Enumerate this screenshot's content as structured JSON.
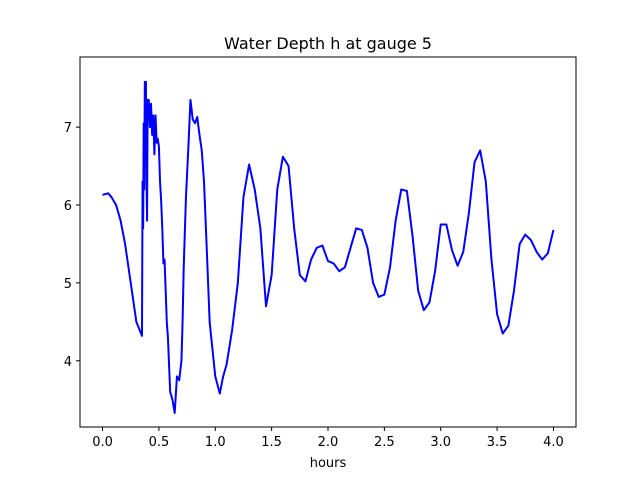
{
  "chart_data": {
    "type": "line",
    "title": "Water Depth h at gauge 5",
    "xlabel": "hours",
    "ylabel": "",
    "xlim": [
      -0.2,
      4.2
    ],
    "ylim": [
      3.15,
      7.9
    ],
    "xticks": [
      0.0,
      0.5,
      1.0,
      1.5,
      2.0,
      2.5,
      3.0,
      3.5,
      4.0
    ],
    "xtick_labels": [
      "0.0",
      "0.5",
      "1.0",
      "1.5",
      "2.0",
      "2.5",
      "3.0",
      "3.5",
      "4.0"
    ],
    "yticks": [
      4,
      5,
      6,
      7
    ],
    "ytick_labels": [
      "4",
      "5",
      "6",
      "7"
    ],
    "grid": false,
    "series": [
      {
        "color": "#0000ff",
        "x": [
          0.0,
          0.05,
          0.08,
          0.12,
          0.16,
          0.2,
          0.25,
          0.3,
          0.35,
          0.355,
          0.36,
          0.365,
          0.37,
          0.375,
          0.38,
          0.385,
          0.39,
          0.395,
          0.4,
          0.41,
          0.42,
          0.43,
          0.44,
          0.45,
          0.46,
          0.47,
          0.48,
          0.49,
          0.5,
          0.51,
          0.52,
          0.53,
          0.54,
          0.55,
          0.56,
          0.57,
          0.58,
          0.6,
          0.62,
          0.64,
          0.66,
          0.68,
          0.7,
          0.71,
          0.72,
          0.74,
          0.76,
          0.78,
          0.8,
          0.82,
          0.84,
          0.86,
          0.88,
          0.9,
          0.92,
          0.95,
          1.0,
          1.04,
          1.07,
          1.1,
          1.15,
          1.2,
          1.25,
          1.3,
          1.35,
          1.4,
          1.45,
          1.5,
          1.55,
          1.6,
          1.65,
          1.7,
          1.75,
          1.8,
          1.85,
          1.9,
          1.95,
          2.0,
          2.05,
          2.1,
          2.15,
          2.2,
          2.25,
          2.3,
          2.35,
          2.4,
          2.45,
          2.5,
          2.55,
          2.6,
          2.65,
          2.7,
          2.75,
          2.8,
          2.85,
          2.9,
          2.95,
          3.0,
          3.05,
          3.1,
          3.15,
          3.2,
          3.25,
          3.3,
          3.35,
          3.4,
          3.45,
          3.5,
          3.55,
          3.6,
          3.65,
          3.7,
          3.75,
          3.8,
          3.85,
          3.9,
          3.95,
          4.0
        ],
        "y": [
          6.13,
          6.15,
          6.1,
          6.0,
          5.8,
          5.5,
          5.0,
          4.5,
          4.32,
          6.3,
          5.7,
          7.05,
          6.2,
          7.58,
          7.4,
          7.58,
          6.3,
          5.8,
          7.35,
          7.35,
          7.0,
          7.3,
          6.9,
          7.15,
          6.65,
          7.15,
          6.8,
          6.85,
          6.75,
          6.3,
          6.05,
          5.7,
          5.25,
          5.3,
          4.9,
          4.5,
          4.3,
          3.6,
          3.5,
          3.33,
          3.8,
          3.75,
          4.0,
          4.5,
          5.2,
          6.1,
          6.7,
          7.35,
          7.1,
          7.05,
          7.13,
          6.9,
          6.7,
          6.3,
          5.6,
          4.5,
          3.8,
          3.58,
          3.8,
          3.95,
          4.4,
          5.0,
          6.1,
          6.52,
          6.2,
          5.7,
          4.7,
          5.1,
          6.2,
          6.62,
          6.5,
          5.7,
          5.1,
          5.02,
          5.3,
          5.45,
          5.48,
          5.28,
          5.25,
          5.15,
          5.2,
          5.45,
          5.7,
          5.68,
          5.45,
          5.0,
          4.82,
          4.85,
          5.2,
          5.8,
          6.2,
          6.18,
          5.6,
          4.9,
          4.65,
          4.75,
          5.15,
          5.75,
          5.75,
          5.42,
          5.22,
          5.4,
          5.9,
          6.55,
          6.7,
          6.3,
          5.3,
          4.6,
          4.35,
          4.45,
          4.9,
          5.5,
          5.62,
          5.55,
          5.4,
          5.3,
          5.38,
          5.68
        ]
      }
    ]
  }
}
